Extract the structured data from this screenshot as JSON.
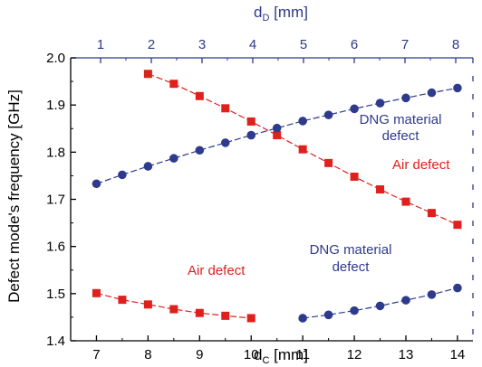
{
  "colors": {
    "bottom_axis": "#000000",
    "top_axis": "#2e3a8c",
    "air": "#e0201c",
    "dng": "#2e3a8c"
  },
  "chart_data": {
    "type": "scatter",
    "ylabel": "Defect mode's frequency [GHz]",
    "ylim": [
      1.4,
      2.0
    ],
    "yticks": [
      "1.4",
      "1.5",
      "1.6",
      "1.7",
      "1.8",
      "1.9",
      "2.0"
    ],
    "xlabel_bottom": {
      "main": "d",
      "sub": "C",
      "unit": " [mm]"
    },
    "xlim_bottom": [
      6.5,
      14.3
    ],
    "xticks_bottom": [
      "7",
      "8",
      "9",
      "10",
      "11",
      "12",
      "13",
      "14"
    ],
    "xlabel_top": {
      "main": "d",
      "sub": "D",
      "unit": " [mm]"
    },
    "xticks_top": [
      "1",
      "2",
      "3",
      "4",
      "5",
      "6",
      "7",
      "8"
    ],
    "series": [
      {
        "marker": "square",
        "color": "#e0201c",
        "points": [
          [
            8.0,
            1.966
          ],
          [
            8.5,
            1.945
          ],
          [
            9.0,
            1.919
          ],
          [
            9.5,
            1.893
          ],
          [
            10.0,
            1.865
          ],
          [
            10.5,
            1.836
          ],
          [
            11.0,
            1.806
          ],
          [
            11.5,
            1.777
          ],
          [
            12.0,
            1.748
          ],
          [
            12.5,
            1.721
          ],
          [
            13.0,
            1.695
          ],
          [
            13.5,
            1.671
          ],
          [
            14.0,
            1.646
          ]
        ]
      },
      {
        "marker": "circle",
        "color": "#2e3a8c",
        "points": [
          [
            7.0,
            1.733
          ],
          [
            7.5,
            1.752
          ],
          [
            8.0,
            1.77
          ],
          [
            8.5,
            1.787
          ],
          [
            9.0,
            1.804
          ],
          [
            9.5,
            1.82
          ],
          [
            10.0,
            1.836
          ],
          [
            10.5,
            1.851
          ],
          [
            11.0,
            1.866
          ],
          [
            11.5,
            1.879
          ],
          [
            12.0,
            1.892
          ],
          [
            12.5,
            1.904
          ],
          [
            13.0,
            1.915
          ],
          [
            13.5,
            1.926
          ],
          [
            14.0,
            1.936
          ]
        ]
      },
      {
        "marker": "square",
        "color": "#e0201c",
        "points": [
          [
            7.0,
            1.501
          ],
          [
            7.5,
            1.487
          ],
          [
            8.0,
            1.477
          ],
          [
            8.5,
            1.467
          ],
          [
            9.0,
            1.459
          ],
          [
            9.5,
            1.453
          ],
          [
            10.0,
            1.448
          ]
        ]
      },
      {
        "marker": "circle",
        "color": "#2e3a8c",
        "points": [
          [
            11.0,
            1.448
          ],
          [
            11.5,
            1.455
          ],
          [
            12.0,
            1.464
          ],
          [
            12.5,
            1.474
          ],
          [
            13.0,
            1.486
          ],
          [
            13.5,
            1.498
          ],
          [
            14.0,
            1.512
          ]
        ]
      }
    ],
    "annotations": {
      "dng_upper_1": "DNG material",
      "dng_upper_2": "defect",
      "air_upper": "Air defect",
      "air_lower": "Air defect",
      "dng_lower_1": "DNG material",
      "dng_lower_2": "defect"
    }
  }
}
